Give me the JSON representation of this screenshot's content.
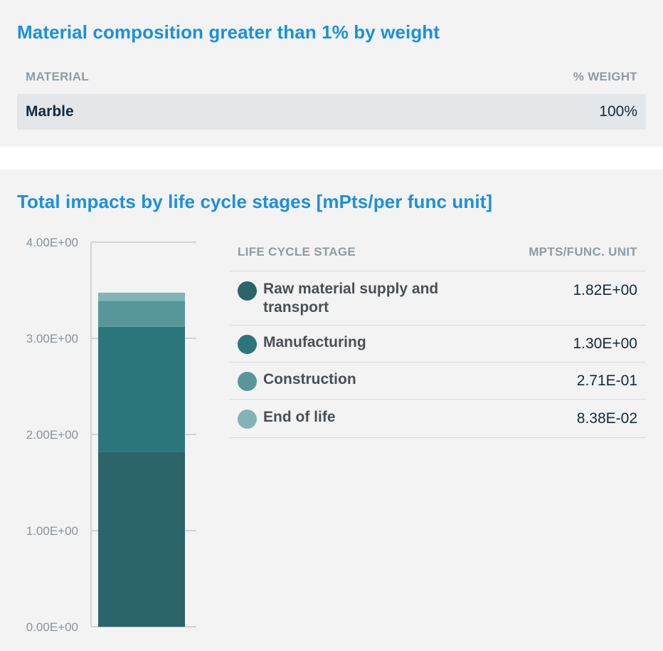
{
  "material_section": {
    "title": "Material composition greater than 1% by weight",
    "header_material": "MATERIAL",
    "header_weight": "% WEIGHT",
    "rows": [
      {
        "material": "Marble",
        "weight": "100%"
      }
    ]
  },
  "impacts_section": {
    "title": "Total impacts by life cycle stages [mPts/per func unit]",
    "header_stage": "LIFE CYCLE STAGE",
    "header_unit": "MPTS/FUNC. UNIT"
  },
  "chart_data": {
    "type": "bar",
    "stacked": true,
    "title": "Total impacts by life cycle stages [mPts/per func unit]",
    "xlabel": "",
    "ylabel": "",
    "ylim": [
      0,
      4
    ],
    "y_ticks": [
      0,
      1,
      2,
      3,
      4
    ],
    "y_tick_labels": [
      "0.00E+00",
      "1.00E+00",
      "2.00E+00",
      "3.00E+00",
      "4.00E+00"
    ],
    "categories": [
      ""
    ],
    "series": [
      {
        "name": "Raw material supply and transport",
        "values": [
          1.82
        ],
        "label": "1.82E+00",
        "color": "#2b6469"
      },
      {
        "name": "Manufacturing",
        "values": [
          1.3
        ],
        "label": "1.30E+00",
        "color": "#2b767b"
      },
      {
        "name": "Construction",
        "values": [
          0.271
        ],
        "label": "2.71E-01",
        "color": "#57979a"
      },
      {
        "name": "End of life",
        "values": [
          0.0838
        ],
        "label": "8.38E-02",
        "color": "#84b3b5"
      }
    ]
  }
}
